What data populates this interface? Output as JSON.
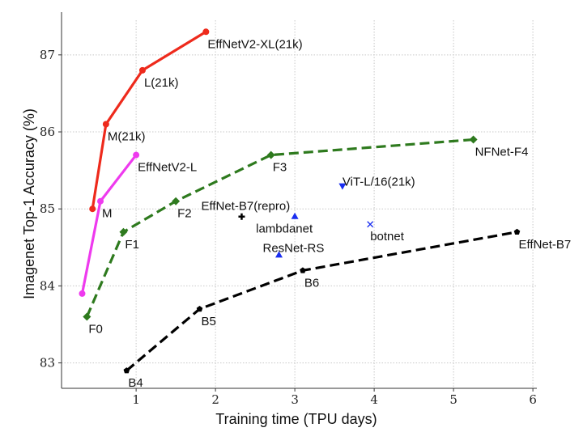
{
  "chart_data": {
    "type": "line",
    "title": "",
    "xlabel": "Training time (TPU days)",
    "ylabel": "Imagenet Top-1 Accuracy (%)",
    "xlim": [
      0.06,
      6.05
    ],
    "ylim": [
      82.67,
      87.45
    ],
    "xticks": [
      1,
      2,
      3,
      4,
      5,
      6
    ],
    "yticks": [
      83,
      84,
      85,
      86,
      87
    ],
    "grid": true,
    "series": [
      {
        "color": "#ee2a1c",
        "style": "solid",
        "marker": "circle",
        "points": [
          {
            "x": 0.45,
            "y": 85.0,
            "label": ""
          },
          {
            "x": 0.62,
            "y": 86.1,
            "label": "M(21k)"
          },
          {
            "x": 1.08,
            "y": 86.8,
            "label": "L(21k)"
          },
          {
            "x": 1.88,
            "y": 87.3,
            "label": "EffNetV2-XL(21k)"
          }
        ]
      },
      {
        "color": "#ee3aee",
        "style": "solid",
        "marker": "circle",
        "points": [
          {
            "x": 0.32,
            "y": 83.9,
            "label": ""
          },
          {
            "x": 0.55,
            "y": 85.1,
            "label": "M"
          },
          {
            "x": 1.0,
            "y": 85.7,
            "label": "EffNetV2-L"
          }
        ]
      },
      {
        "color": "#2e7a1e",
        "style": "dashed",
        "marker": "diamond",
        "points": [
          {
            "x": 0.38,
            "y": 83.6,
            "label": "F0"
          },
          {
            "x": 0.84,
            "y": 84.7,
            "label": "F1"
          },
          {
            "x": 1.5,
            "y": 85.1,
            "label": "F2"
          },
          {
            "x": 2.7,
            "y": 85.7,
            "label": "F3"
          },
          {
            "x": 5.25,
            "y": 85.9,
            "label": "NFNet-F4"
          }
        ]
      },
      {
        "color": "#000000",
        "style": "dashed",
        "marker": "pentagon",
        "points": [
          {
            "x": 0.88,
            "y": 82.9,
            "label": "B4"
          },
          {
            "x": 1.8,
            "y": 83.7,
            "label": "B5"
          },
          {
            "x": 3.1,
            "y": 84.2,
            "label": "B6"
          },
          {
            "x": 5.8,
            "y": 84.7,
            "label": "EffNet-B7"
          }
        ]
      }
    ],
    "scatter": [
      {
        "x": 2.33,
        "y": 84.9,
        "label": "EffNet-B7(repro)",
        "marker": "plus",
        "color": "#000000"
      },
      {
        "x": 3.0,
        "y": 84.9,
        "label": "lambdanet",
        "marker": "triangle-up",
        "color": "#1a2ef0"
      },
      {
        "x": 2.8,
        "y": 84.4,
        "label": "ResNet-RS",
        "marker": "triangle-up",
        "color": "#1a2ef0"
      },
      {
        "x": 3.6,
        "y": 85.3,
        "label": "ViT-L/16(21k)",
        "marker": "triangle-down",
        "color": "#1a2ef0"
      },
      {
        "x": 3.95,
        "y": 84.8,
        "label": "botnet",
        "marker": "x",
        "color": "#1a2ef0"
      }
    ]
  }
}
